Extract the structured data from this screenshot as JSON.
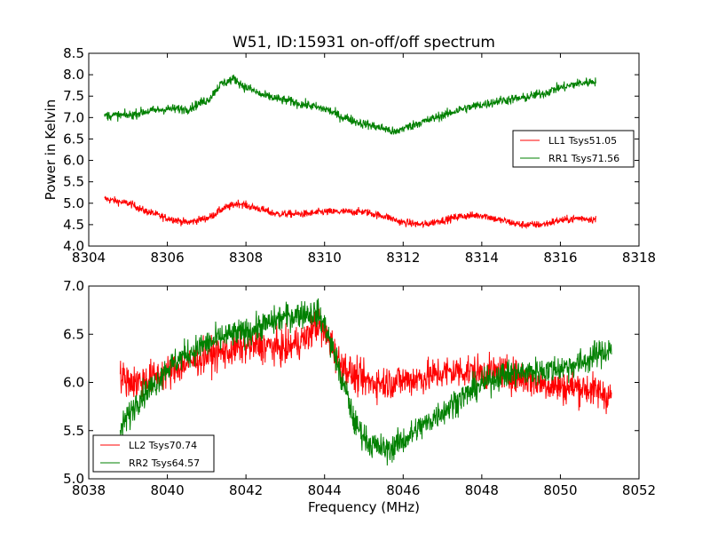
{
  "figure": {
    "title": "W51, ID:15931 on-off/off spectrum"
  },
  "chart_data": [
    {
      "type": "line",
      "title": "W51, ID:15931 on-off/off spectrum",
      "xlabel": "",
      "ylabel": "Power in Kelvin",
      "xlim": [
        8304,
        8318
      ],
      "ylim": [
        4.0,
        8.5
      ],
      "x_ticks": [
        8304,
        8306,
        8308,
        8310,
        8312,
        8314,
        8316,
        8318
      ],
      "y_ticks": [
        4.0,
        4.5,
        5.0,
        5.5,
        6.0,
        6.5,
        7.0,
        7.5,
        8.0,
        8.5
      ],
      "x_tick_labels": [
        "8304",
        "8306",
        "8308",
        "8310",
        "8312",
        "8314",
        "8316",
        "8318"
      ],
      "y_tick_labels": [
        "4.0",
        "4.5",
        "5.0",
        "5.5",
        "6.0",
        "6.5",
        "7.0",
        "7.5",
        "8.0",
        "8.5"
      ],
      "legend_position": "center-right",
      "grid": false,
      "series": [
        {
          "name": "LL1 Tsys51.05",
          "color": "#ff0000",
          "noise": 0.08,
          "x": [
            8304.4,
            8305.0,
            8305.5,
            8306.0,
            8306.5,
            8307.0,
            8307.5,
            8307.8,
            8308.2,
            8308.8,
            8309.5,
            8310.0,
            8310.5,
            8311.0,
            8311.5,
            8312.0,
            8312.5,
            8313.0,
            8313.5,
            8314.0,
            8314.5,
            8315.0,
            8315.5,
            8316.0,
            8316.5,
            8316.9
          ],
          "y": [
            5.1,
            5.0,
            4.8,
            4.65,
            4.55,
            4.65,
            4.9,
            5.0,
            4.9,
            4.75,
            4.75,
            4.8,
            4.8,
            4.8,
            4.7,
            4.55,
            4.5,
            4.6,
            4.7,
            4.72,
            4.6,
            4.5,
            4.5,
            4.6,
            4.65,
            4.62
          ]
        },
        {
          "name": "RR1 Tsys71.56",
          "color": "#008000",
          "noise": 0.1,
          "x": [
            8304.4,
            8305.0,
            8305.5,
            8306.0,
            8306.5,
            8307.0,
            8307.4,
            8307.7,
            8308.0,
            8308.5,
            8309.0,
            8309.5,
            8310.0,
            8310.5,
            8311.0,
            8311.5,
            8311.8,
            8312.0,
            8312.5,
            8313.0,
            8313.5,
            8314.0,
            8314.5,
            8315.0,
            8315.5,
            8316.0,
            8316.5,
            8316.9
          ],
          "y": [
            7.05,
            7.05,
            7.15,
            7.2,
            7.2,
            7.4,
            7.8,
            7.9,
            7.7,
            7.5,
            7.4,
            7.3,
            7.2,
            7.0,
            6.85,
            6.75,
            6.65,
            6.75,
            6.9,
            7.05,
            7.2,
            7.3,
            7.4,
            7.45,
            7.55,
            7.7,
            7.8,
            7.85
          ]
        }
      ]
    },
    {
      "type": "line",
      "title": "",
      "xlabel": "Frequency (MHz)",
      "ylabel": "",
      "xlim": [
        8038,
        8052
      ],
      "ylim": [
        5.0,
        7.0
      ],
      "x_ticks": [
        8038,
        8040,
        8042,
        8044,
        8046,
        8048,
        8050,
        8052
      ],
      "y_ticks": [
        5.0,
        5.5,
        6.0,
        6.5,
        7.0
      ],
      "x_tick_labels": [
        "8038",
        "8040",
        "8042",
        "8044",
        "8046",
        "8048",
        "8050",
        "8052"
      ],
      "y_tick_labels": [
        "5.0",
        "5.5",
        "6.0",
        "6.5",
        "7.0"
      ],
      "legend_position": "lower-left",
      "grid": false,
      "series": [
        {
          "name": "LL2 Tsys70.74",
          "color": "#ff0000",
          "noise": 0.16,
          "x": [
            8038.8,
            8039.2,
            8039.6,
            8040.0,
            8040.5,
            8041.0,
            8041.5,
            8042.0,
            8042.5,
            8043.0,
            8043.5,
            8043.8,
            8044.1,
            8044.4,
            8044.8,
            8045.2,
            8045.6,
            8046.0,
            8046.5,
            8047.0,
            8047.5,
            8048.0,
            8048.5,
            8049.0,
            8049.5,
            8050.0,
            8050.5,
            8051.0,
            8051.3
          ],
          "y": [
            6.05,
            6.0,
            6.05,
            6.1,
            6.2,
            6.28,
            6.32,
            6.38,
            6.38,
            6.35,
            6.45,
            6.6,
            6.45,
            6.2,
            6.05,
            6.0,
            6.0,
            6.02,
            6.05,
            6.1,
            6.12,
            6.1,
            6.1,
            6.05,
            6.0,
            5.95,
            5.95,
            5.9,
            5.85
          ]
        },
        {
          "name": "RR2 Tsys64.57",
          "color": "#008000",
          "noise": 0.13,
          "x": [
            8038.8,
            8039.0,
            8039.3,
            8039.6,
            8040.0,
            8040.5,
            8041.0,
            8041.5,
            8042.0,
            8042.5,
            8043.0,
            8043.5,
            8043.8,
            8044.0,
            8044.2,
            8044.5,
            8044.8,
            8045.2,
            8045.6,
            8046.0,
            8046.5,
            8047.0,
            8047.5,
            8048.0,
            8048.5,
            8049.0,
            8049.5,
            8050.0,
            8050.5,
            8051.0,
            8051.3
          ],
          "y": [
            5.5,
            5.65,
            5.85,
            5.95,
            6.15,
            6.3,
            6.4,
            6.48,
            6.52,
            6.6,
            6.68,
            6.72,
            6.72,
            6.6,
            6.35,
            5.95,
            5.55,
            5.35,
            5.3,
            5.4,
            5.55,
            5.7,
            5.85,
            5.98,
            6.08,
            6.1,
            6.12,
            6.15,
            6.2,
            6.3,
            6.35
          ]
        }
      ]
    }
  ]
}
